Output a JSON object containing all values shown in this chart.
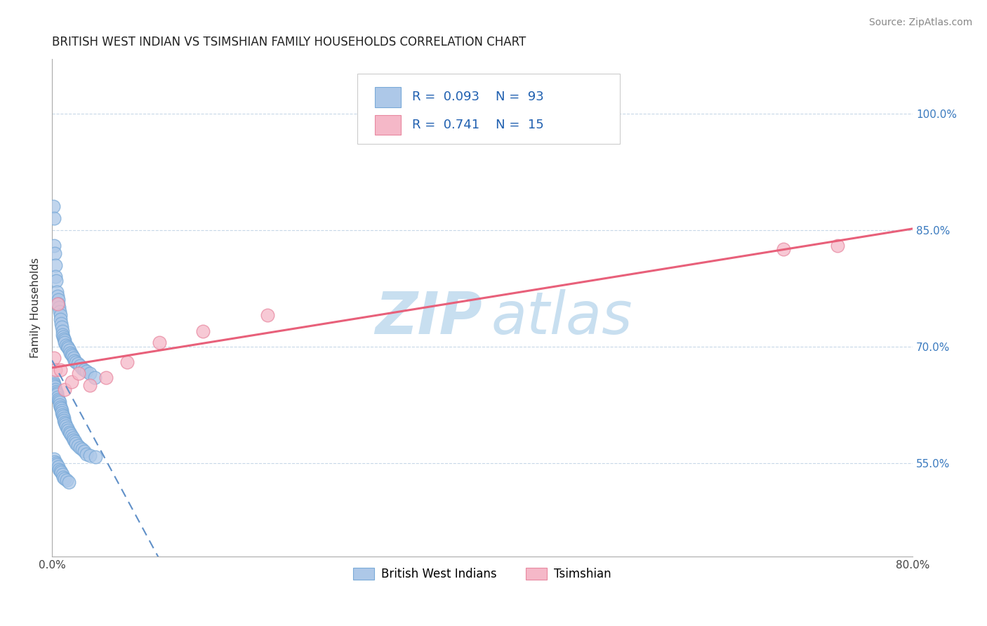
{
  "title": "BRITISH WEST INDIAN VS TSIMSHIAN FAMILY HOUSEHOLDS CORRELATION CHART",
  "source": "Source: ZipAtlas.com",
  "ylabel": "Family Households",
  "xmin": 0.0,
  "xmax": 80.0,
  "ymin": 43.0,
  "ymax": 107.0,
  "yticks": [
    55.0,
    70.0,
    85.0,
    100.0
  ],
  "ytick_labels": [
    "55.0%",
    "70.0%",
    "85.0%",
    "100.0%"
  ],
  "legend_r1": "R =  0.093",
  "legend_n1": "N =  93",
  "legend_r2": "R =  0.741",
  "legend_n2": "N =  15",
  "legend_label1": "British West Indians",
  "legend_label2": "Tsimshian",
  "blue_color": "#adc8e8",
  "pink_color": "#f5b8c8",
  "blue_line_color": "#6090c8",
  "pink_line_color": "#e8607a",
  "watermark_color": "#c8dff0",
  "title_fontsize": 12,
  "axis_label_fontsize": 11,
  "tick_fontsize": 11,
  "source_fontsize": 10,
  "blue_scatter_x": [
    0.15,
    0.22,
    0.18,
    0.25,
    0.3,
    0.35,
    0.4,
    0.45,
    0.5,
    0.55,
    0.6,
    0.65,
    0.7,
    0.75,
    0.8,
    0.85,
    0.9,
    0.95,
    1.0,
    1.05,
    1.1,
    1.15,
    1.2,
    1.3,
    1.4,
    1.5,
    1.6,
    1.7,
    1.8,
    1.9,
    2.0,
    2.1,
    2.2,
    2.4,
    2.6,
    2.8,
    3.0,
    3.2,
    3.5,
    4.0,
    0.12,
    0.18,
    0.22,
    0.28,
    0.32,
    0.38,
    0.42,
    0.48,
    0.52,
    0.58,
    0.62,
    0.68,
    0.72,
    0.78,
    0.82,
    0.88,
    0.92,
    0.98,
    1.02,
    1.08,
    1.12,
    1.18,
    1.22,
    1.32,
    1.42,
    1.52,
    1.62,
    1.72,
    1.82,
    1.92,
    2.02,
    2.12,
    2.22,
    2.42,
    2.62,
    2.82,
    3.02,
    3.22,
    3.52,
    4.02,
    0.16,
    0.26,
    0.36,
    0.46,
    0.56,
    0.66,
    0.76,
    0.86,
    0.96,
    1.06,
    1.16,
    1.36,
    1.56
  ],
  "blue_scatter_y": [
    88.0,
    86.5,
    83.0,
    82.0,
    80.5,
    79.0,
    78.5,
    77.0,
    76.5,
    76.0,
    75.5,
    75.0,
    74.5,
    74.0,
    73.5,
    73.0,
    72.5,
    72.0,
    71.5,
    71.2,
    71.0,
    70.8,
    70.5,
    70.2,
    70.0,
    69.8,
    69.5,
    69.2,
    69.0,
    68.8,
    68.5,
    68.2,
    68.0,
    67.8,
    67.5,
    67.2,
    67.0,
    66.8,
    66.5,
    66.0,
    65.5,
    65.2,
    65.0,
    64.8,
    64.5,
    64.2,
    64.0,
    63.8,
    63.5,
    63.2,
    63.0,
    62.8,
    62.5,
    62.2,
    62.0,
    61.8,
    61.5,
    61.2,
    61.0,
    60.8,
    60.5,
    60.2,
    60.0,
    59.8,
    59.5,
    59.2,
    59.0,
    58.8,
    58.5,
    58.2,
    58.0,
    57.8,
    57.5,
    57.2,
    57.0,
    56.8,
    56.5,
    56.2,
    56.0,
    55.8,
    55.5,
    55.2,
    55.0,
    54.8,
    54.5,
    54.2,
    54.0,
    53.8,
    53.5,
    53.2,
    53.0,
    52.8,
    52.5
  ],
  "pink_scatter_x": [
    0.2,
    0.3,
    0.5,
    0.8,
    1.2,
    1.8,
    2.5,
    3.5,
    5.0,
    7.0,
    10.0,
    14.0,
    20.0,
    68.0,
    73.0
  ],
  "pink_scatter_y": [
    68.5,
    67.0,
    75.5,
    67.0,
    64.5,
    65.5,
    66.5,
    65.0,
    66.0,
    68.0,
    70.5,
    72.0,
    74.0,
    82.5,
    83.0
  ]
}
